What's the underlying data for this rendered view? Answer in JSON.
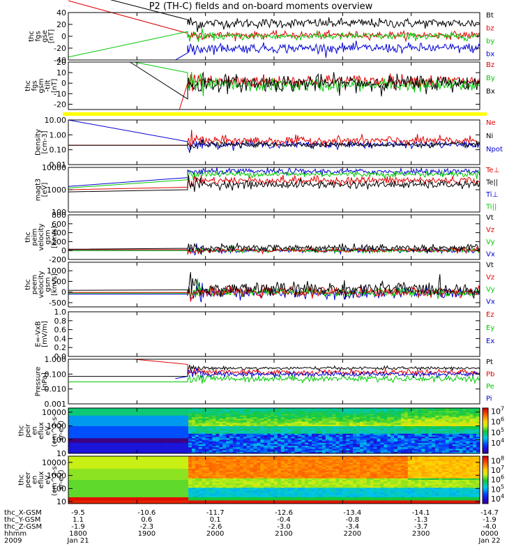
{
  "title": "P2 (TH-C) fields and on-board moments overview",
  "colors": {
    "black": "#000000",
    "red": "#e00000",
    "green": "#00c800",
    "blue": "#0000d0",
    "yellow": "#ffff00"
  },
  "chart_data": [
    {
      "type": "line",
      "panel": "fgs_gse",
      "ylabel": [
        "thc",
        "fgs",
        "gse",
        "[nT]"
      ],
      "yticks": [
        "40",
        "20",
        "0",
        "-20",
        "-40"
      ],
      "ylim": [
        -40,
        40
      ],
      "legend": [
        {
          "name": "Bt",
          "color": "#000000"
        },
        {
          "name": "bz",
          "color": "#e00000"
        },
        {
          "name": "by",
          "color": "#00c800"
        },
        {
          "name": "bx",
          "color": "#0000d0"
        }
      ],
      "series": [
        {
          "name": "Bt",
          "color": "#000000",
          "pre": [
            [
              0.0,
              80
            ],
            [
              0.29,
              28
            ]
          ],
          "level": 22,
          "noise": 4
        },
        {
          "name": "bz",
          "color": "#e00000",
          "pre": [
            [
              0.0,
              60
            ],
            [
              0.29,
              5
            ]
          ],
          "level": 2,
          "noise": 3
        },
        {
          "name": "by",
          "color": "#00c800",
          "pre": [
            [
              0.0,
              -35
            ],
            [
              0.29,
              8
            ]
          ],
          "level": 0,
          "noise": 3
        },
        {
          "name": "bx",
          "color": "#0000d0",
          "pre": [
            [
              0.26,
              -40
            ],
            [
              0.29,
              -28
            ]
          ],
          "level": -20,
          "noise": 4
        }
      ]
    },
    {
      "type": "line",
      "panel": "fgs_gsm",
      "ylabel": [
        "thc",
        "fgs",
        "gsm",
        "-tilt",
        "[nT]"
      ],
      "yticks": [
        "20",
        "10",
        "0",
        "-10",
        "-20"
      ],
      "ylim": [
        -25,
        20
      ],
      "legend": [
        {
          "name": "Bz",
          "color": "#e00000"
        },
        {
          "name": "By",
          "color": "#00c800"
        },
        {
          "name": "Bx",
          "color": "#000000"
        }
      ],
      "series": [
        {
          "name": "Bz",
          "color": "#e00000",
          "pre": [
            [
              0.27,
              -25
            ],
            [
              0.29,
              0
            ]
          ],
          "level": 2,
          "noise": 3
        },
        {
          "name": "By",
          "color": "#00c800",
          "pre": [
            [
              0.16,
              20
            ],
            [
              0.29,
              10
            ]
          ],
          "level": -2,
          "noise": 3
        },
        {
          "name": "Bx",
          "color": "#000000",
          "pre": [
            [
              0.15,
              20
            ],
            [
              0.29,
              -15
            ]
          ],
          "level": 0,
          "noise": 4
        }
      ]
    },
    {
      "type": "line",
      "panel": "density",
      "ylabel": [
        "Density",
        "[cm-3]"
      ],
      "yticks": [
        "10.00",
        "1.00",
        "0.10",
        "0.01"
      ],
      "ylim": [
        0.01,
        10
      ],
      "log": true,
      "legend": [
        {
          "name": "Ne",
          "color": "#e00000"
        },
        {
          "name": "Ni",
          "color": "#000000"
        },
        {
          "name": "Npot",
          "color": "#0000d0"
        }
      ],
      "series": [
        {
          "name": "Npot",
          "color": "#0000d0",
          "pre": [
            [
              0.0,
              10
            ],
            [
              0.29,
              0.35
            ]
          ],
          "level": 0.22,
          "noise": 0.25
        },
        {
          "name": "Ne",
          "color": "#e00000",
          "pre": [
            [
              0.0,
              0.2
            ],
            [
              0.29,
              0.2
            ]
          ],
          "level": 0.4,
          "noise": 0.35
        },
        {
          "name": "Ni",
          "color": "#000000",
          "pre": [
            [
              0.0,
              0.2
            ],
            [
              0.29,
              0.2
            ]
          ],
          "level": 0.22,
          "noise": 0.2
        }
      ]
    },
    {
      "type": "line",
      "panel": "temperature",
      "ylabel": [
        "magt3",
        "[eV]"
      ],
      "yticks": [
        "10000",
        "1000",
        "100"
      ],
      "ylim": [
        100,
        10000
      ],
      "log": true,
      "legend": [
        {
          "name": "Te⊥",
          "color": "#e00000"
        },
        {
          "name": "Te||",
          "color": "#000000"
        },
        {
          "name": "Ti⊥",
          "color": "#0000d0"
        },
        {
          "name": "Ti||",
          "color": "#00c800"
        }
      ],
      "series": [
        {
          "name": "Ti⊥",
          "color": "#0000d0",
          "pre": [
            [
              0.0,
              1400
            ],
            [
              0.29,
              3500
            ]
          ],
          "level": 6500,
          "noise": 0.15
        },
        {
          "name": "Ti||",
          "color": "#00c800",
          "pre": [
            [
              0.0,
              1200
            ],
            [
              0.29,
              2800
            ]
          ],
          "level": 5000,
          "noise": 0.15
        },
        {
          "name": "Te⊥",
          "color": "#e00000",
          "pre": [
            [
              0.0,
              1000
            ],
            [
              0.29,
              1300
            ]
          ],
          "level": 2600,
          "noise": 0.2
        },
        {
          "name": "Te||",
          "color": "#000000",
          "pre": [
            [
              0.0,
              800
            ],
            [
              0.29,
              1000
            ]
          ],
          "level": 1700,
          "noise": 0.2
        }
      ]
    },
    {
      "type": "line",
      "panel": "peim_velocity",
      "ylabel": [
        "thc",
        "peim",
        "velocity",
        "gsm",
        "[km/s]"
      ],
      "yticks": [
        "800",
        "600",
        "400",
        "200",
        "0",
        "-200"
      ],
      "ylim": [
        -200,
        800
      ],
      "legend": [
        {
          "name": "Vt",
          "color": "#000000"
        },
        {
          "name": "Vz",
          "color": "#e00000"
        },
        {
          "name": "Vy",
          "color": "#00c800"
        },
        {
          "name": "Vx",
          "color": "#0000d0"
        }
      ],
      "series": [
        {
          "name": "Vx",
          "color": "#0000d0",
          "pre": [
            [
              0.0,
              0
            ],
            [
              0.29,
              0
            ]
          ],
          "level": 0,
          "noise": 25
        },
        {
          "name": "Vy",
          "color": "#00c800",
          "pre": [
            [
              0.0,
              0
            ],
            [
              0.29,
              0
            ]
          ],
          "level": 0,
          "noise": 25
        },
        {
          "name": "Vz",
          "color": "#e00000",
          "pre": [
            [
              0.0,
              20
            ],
            [
              0.29,
              20
            ]
          ],
          "level": 10,
          "noise": 25
        },
        {
          "name": "Vt",
          "color": "#000000",
          "pre": [
            [
              0.0,
              30
            ],
            [
              0.29,
              50
            ]
          ],
          "level": 60,
          "noise": 40
        }
      ]
    },
    {
      "type": "line",
      "panel": "peem_velocity",
      "ylabel": [
        "thc",
        "peem",
        "velocity",
        "gsm",
        "[km/s]"
      ],
      "yticks": [
        "1000",
        "500",
        "0",
        "-500"
      ],
      "ylim": [
        -700,
        1400
      ],
      "legend": [
        {
          "name": "Vt",
          "color": "#000000"
        },
        {
          "name": "Vz",
          "color": "#e00000"
        },
        {
          "name": "Vy",
          "color": "#00c800"
        },
        {
          "name": "Vx",
          "color": "#0000d0"
        }
      ],
      "series": [
        {
          "name": "Vx",
          "color": "#0000d0",
          "pre": [
            [
              0.0,
              -100
            ],
            [
              0.29,
              -100
            ]
          ],
          "level": -50,
          "noise": 120
        },
        {
          "name": "Vy",
          "color": "#00c800",
          "pre": [
            [
              0.0,
              -50
            ],
            [
              0.29,
              -50
            ]
          ],
          "level": -20,
          "noise": 110
        },
        {
          "name": "Vz",
          "color": "#e00000",
          "pre": [
            [
              0.0,
              -20
            ],
            [
              0.29,
              -20
            ]
          ],
          "level": 0,
          "noise": 110
        },
        {
          "name": "Vt",
          "color": "#000000",
          "pre": [
            [
              0.0,
              80
            ],
            [
              0.29,
              100
            ]
          ],
          "level": 150,
          "noise": 160
        }
      ]
    },
    {
      "type": "line",
      "panel": "efield",
      "ylabel": [
        "E=-VxB",
        "[mV/m]"
      ],
      "yticks": [
        "1.0",
        "0.8",
        "0.6",
        "0.4",
        "0.2",
        "0.0"
      ],
      "ylim": [
        0,
        1
      ],
      "legend": [
        {
          "name": "Ez",
          "color": "#e00000"
        },
        {
          "name": "Ey",
          "color": "#00c800"
        },
        {
          "name": "Ex",
          "color": "#0000d0"
        }
      ],
      "series": []
    },
    {
      "type": "line",
      "panel": "pressure",
      "ylabel": [
        "Pressure",
        "[nPa]"
      ],
      "yticks": [
        "1.000",
        "0.100",
        "0.010",
        "0.001"
      ],
      "ylim": [
        0.001,
        1
      ],
      "log": true,
      "legend": [
        {
          "name": "Pt",
          "color": "#000000"
        },
        {
          "name": "Pb",
          "color": "#e00000"
        },
        {
          "name": "Pe",
          "color": "#00c800"
        },
        {
          "name": "Pi",
          "color": "#0000d0"
        }
      ],
      "series": [
        {
          "name": "Pt",
          "color": "#000000",
          "pre": [
            [
              0.0,
              0.07
            ],
            [
              0.29,
              0.07
            ]
          ],
          "level": 0.25,
          "noise": 0.12
        },
        {
          "name": "Pb",
          "color": "#e00000",
          "pre": [
            [
              0.16,
              1.0
            ],
            [
              0.29,
              0.45
            ]
          ],
          "level": 0.13,
          "noise": 0.2
        },
        {
          "name": "Pe",
          "color": "#00c800",
          "pre": [
            [
              0.0,
              0.03
            ],
            [
              0.29,
              0.03
            ]
          ],
          "level": 0.05,
          "noise": 0.25
        },
        {
          "name": "Pi",
          "color": "#0000d0",
          "pre": [
            [
              0.26,
              0.05
            ],
            [
              0.29,
              0.07
            ]
          ],
          "level": 0.1,
          "noise": 0.2
        }
      ]
    },
    {
      "type": "heatmap",
      "panel": "peir_eflux",
      "ylabel": [
        "thc",
        "peir",
        "en",
        "eflux",
        "eV",
        "(cm^2-s-",
        "sr-eV)"
      ],
      "yticks": [
        "10000",
        "1000",
        "100",
        "10"
      ],
      "ylim": [
        10,
        20000
      ],
      "log": true,
      "colorbar": {
        "ticks": [
          "10^7",
          "10^6",
          "10^5",
          "10^4"
        ],
        "range": [
          1000,
          20000000
        ]
      }
    },
    {
      "type": "heatmap",
      "panel": "peer_eflux",
      "ylabel": [
        "thc",
        "peer",
        "en",
        "eflux",
        "eV",
        "(cm^2-s-",
        "sr-eV)"
      ],
      "yticks": [
        "10000",
        "1000",
        "100",
        "10"
      ],
      "ylim": [
        7,
        30000
      ],
      "log": true,
      "colorbar": {
        "ticks": [
          "10^8",
          "10^7",
          "10^6",
          "10^5",
          "10^4"
        ],
        "range": [
          3000,
          300000000
        ]
      }
    }
  ],
  "xaxis": {
    "tick_positions": [
      0,
      0.1667,
      0.3333,
      0.5,
      0.6667,
      0.8333,
      1.0
    ],
    "rows": [
      {
        "label": "thc_X-GSM",
        "values": [
          "-9.5",
          "-10.6",
          "-11.7",
          "-12.6",
          "-13.4",
          "-14.1",
          "-14.7"
        ]
      },
      {
        "label": "thc_Y-GSM",
        "values": [
          "1.1",
          "0.6",
          "0.1",
          "-0.4",
          "-0.8",
          "-1.3",
          "-1.9"
        ]
      },
      {
        "label": "thc_Z-GSM",
        "values": [
          "-1.9",
          "-2.3",
          "-2.6",
          "-3.0",
          "-3.4",
          "-3.7",
          "-4.0"
        ]
      },
      {
        "label": "hhmm",
        "values": [
          "1800",
          "1900",
          "2000",
          "2100",
          "2200",
          "2300",
          "0000"
        ]
      },
      {
        "label": "2009",
        "values": [
          "Jan 21",
          "",
          "",
          "",
          "",
          "",
          "Jan 22"
        ]
      }
    ]
  }
}
